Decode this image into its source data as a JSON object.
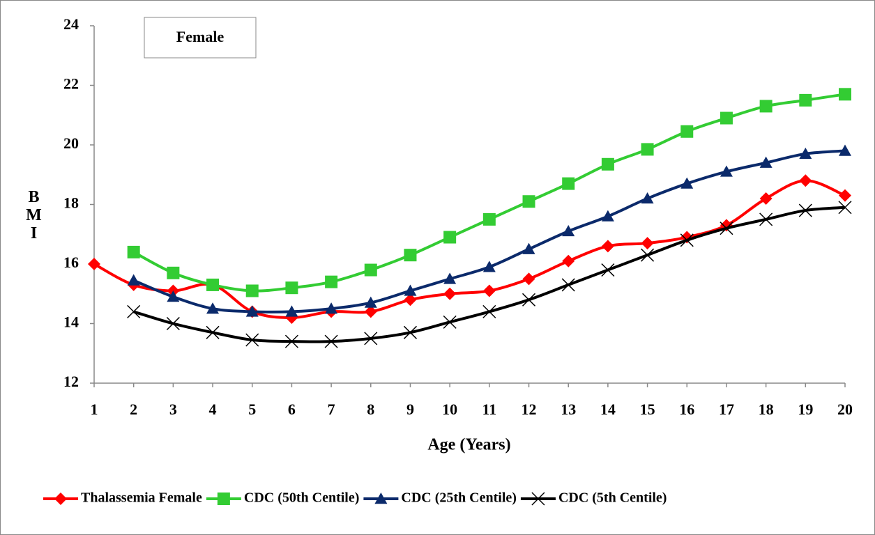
{
  "chart_data": {
    "type": "line",
    "annotation": "Female",
    "xlabel": "Age (Years)",
    "ylabel": "BMI",
    "x": [
      1,
      2,
      3,
      4,
      5,
      6,
      7,
      8,
      9,
      10,
      11,
      12,
      13,
      14,
      15,
      16,
      17,
      18,
      19,
      20
    ],
    "xlim": [
      1,
      20
    ],
    "xticks": [
      1,
      2,
      3,
      4,
      5,
      6,
      7,
      8,
      9,
      10,
      11,
      12,
      13,
      14,
      15,
      16,
      17,
      18,
      19,
      20
    ],
    "ylim": [
      12,
      24
    ],
    "yticks": [
      12,
      14,
      16,
      18,
      20,
      22,
      24
    ],
    "smooth": true,
    "legend": "bottom",
    "series": [
      {
        "name": "Thalassemia Female",
        "color": "#ff0000",
        "marker": "diamond",
        "values": [
          16.0,
          15.3,
          15.1,
          15.3,
          14.4,
          14.2,
          14.4,
          14.4,
          14.8,
          15.0,
          15.1,
          15.5,
          16.1,
          16.6,
          16.7,
          16.9,
          17.3,
          18.2,
          18.8,
          18.3
        ]
      },
      {
        "name": "CDC (50th Centile)",
        "color": "#33cc33",
        "marker": "square",
        "values": [
          null,
          16.4,
          15.7,
          15.3,
          15.1,
          15.2,
          15.4,
          15.8,
          16.3,
          16.9,
          17.5,
          18.1,
          18.7,
          19.35,
          19.85,
          20.45,
          20.9,
          21.3,
          21.5,
          21.7
        ]
      },
      {
        "name": "CDC (25th Centile)",
        "color": "#0b2a6b",
        "marker": "triangle",
        "values": [
          null,
          15.45,
          14.9,
          14.5,
          14.4,
          14.4,
          14.5,
          14.7,
          15.1,
          15.5,
          15.9,
          16.5,
          17.1,
          17.6,
          18.2,
          18.7,
          19.1,
          19.4,
          19.7,
          19.8
        ]
      },
      {
        "name": "CDC (5th Centile)",
        "color": "#000000",
        "marker": "x",
        "values": [
          null,
          14.4,
          14.0,
          13.7,
          13.45,
          13.4,
          13.4,
          13.5,
          13.7,
          14.05,
          14.4,
          14.8,
          15.3,
          15.8,
          16.3,
          16.8,
          17.2,
          17.5,
          17.8,
          17.9
        ]
      }
    ]
  }
}
